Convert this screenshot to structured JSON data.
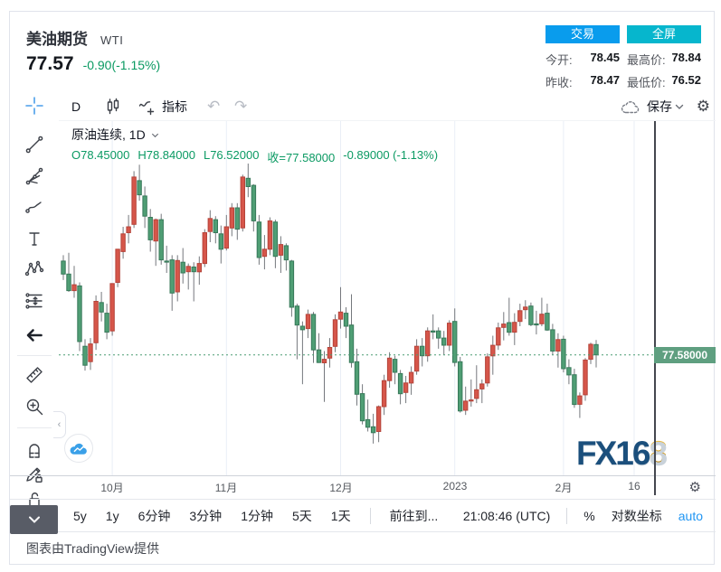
{
  "header": {
    "title": "美油期货",
    "symbol": "WTI",
    "price": "77.57",
    "change": "-0.90(-1.15%)",
    "trade_button": "交易",
    "fullscreen_button": "全屏",
    "stats": [
      {
        "label": "今开:",
        "value": "78.45"
      },
      {
        "label": "最高价:",
        "value": "78.84"
      },
      {
        "label": "昨收:",
        "value": "78.47"
      },
      {
        "label": "最低价:",
        "value": "76.52"
      }
    ]
  },
  "toolbar": {
    "interval": "D",
    "indicators_label": "指标",
    "undo_glyph": "↶",
    "redo_glyph": "↷",
    "save_label": "保存",
    "gear_glyph": "⚙"
  },
  "legend": {
    "series_title": "原油连续, 1D",
    "open": "O78.45000",
    "high": "H78.84000",
    "low": "L76.52000",
    "close": "收=77.58000",
    "change": "-0.89000 (-1.13%)"
  },
  "price_axis": {
    "last_price_label": "77.58000"
  },
  "bottom_bar": {
    "ranges": [
      "5y",
      "1y",
      "6分钟",
      "3分钟",
      "1分钟",
      "5天",
      "1天"
    ],
    "goto": "前往到...",
    "clock": "21:08:46 (UTC)",
    "percent": "%",
    "log_label": "对数坐标",
    "auto_label": "auto"
  },
  "footer": {
    "attribution": "图表由TradingView提供"
  },
  "watermark": {
    "blue": "FX16",
    "gold": "8"
  },
  "left_toolbar_collapse_glyph": "‹",
  "colors": {
    "up": "#d6564a",
    "up_border": "#b5443a",
    "down": "#4f9e74",
    "down_border": "#38795a",
    "wick": "#75787d",
    "grid": "#e9eef6",
    "price_line": "#4a9b72",
    "price_tag_bg": "#5f9f80",
    "trade_btn": "#099ced",
    "fullscreen_btn": "#06b6cd",
    "text_green": "#0a9a62",
    "auto_blue": "#2196f3"
  },
  "chart_data": {
    "type": "candlestick",
    "symbol": "原油连续",
    "interval": "1D",
    "last_price": 77.58,
    "price_range": {
      "min": 67.4,
      "max": 97.33
    },
    "grid": "vertical-only",
    "legend_position": "top-left",
    "time_ticks": [
      {
        "index": 9,
        "label": "10月"
      },
      {
        "index": 30,
        "label": "11月"
      },
      {
        "index": 51,
        "label": "12月"
      },
      {
        "index": 72,
        "label": "2023"
      },
      {
        "index": 92,
        "label": "2月"
      },
      {
        "index": 105,
        "label": "16"
      }
    ],
    "candles": [
      [
        "09-20",
        85.5,
        86.0,
        83.9,
        84.4
      ],
      [
        "09-21",
        84.4,
        86.2,
        82.9,
        83.0
      ],
      [
        "09-22",
        83.0,
        85.1,
        82.4,
        83.5
      ],
      [
        "09-23",
        83.4,
        83.7,
        77.9,
        78.7
      ],
      [
        "09-26",
        78.3,
        78.9,
        76.25,
        76.7
      ],
      [
        "09-27",
        77.0,
        79.0,
        76.3,
        78.5
      ],
      [
        "09-28",
        78.6,
        82.6,
        78.0,
        82.1
      ],
      [
        "09-29",
        82.0,
        82.9,
        80.4,
        81.2
      ],
      [
        "09-30",
        81.1,
        81.9,
        78.9,
        79.5
      ],
      [
        "10-03",
        79.6,
        83.6,
        79.2,
        83.6
      ],
      [
        "10-04",
        83.7,
        86.5,
        83.3,
        86.5
      ],
      [
        "10-05",
        86.3,
        88.4,
        85.7,
        87.8
      ],
      [
        "10-06",
        87.9,
        89.4,
        87.0,
        88.4
      ],
      [
        "10-07",
        88.6,
        93.1,
        88.3,
        92.6
      ],
      [
        "10-10",
        92.3,
        93.64,
        90.6,
        91.1
      ],
      [
        "10-11",
        91.0,
        91.8,
        88.3,
        89.3
      ],
      [
        "10-12",
        89.2,
        89.9,
        86.3,
        87.3
      ],
      [
        "10-13",
        87.2,
        89.1,
        85.1,
        89.0
      ],
      [
        "10-14",
        89.0,
        89.5,
        85.2,
        85.6
      ],
      [
        "10-17",
        85.5,
        86.8,
        84.5,
        85.45
      ],
      [
        "10-18",
        85.6,
        86.0,
        81.3,
        82.8
      ],
      [
        "10-19",
        82.9,
        86.0,
        82.1,
        85.55
      ],
      [
        "10-20",
        85.4,
        86.6,
        83.6,
        84.5
      ],
      [
        "10-21",
        84.6,
        85.3,
        83.1,
        85.05
      ],
      [
        "10-24",
        85.0,
        85.4,
        82.1,
        84.6
      ],
      [
        "10-25",
        84.6,
        85.9,
        83.5,
        85.3
      ],
      [
        "10-26",
        85.3,
        88.2,
        85.0,
        87.9
      ],
      [
        "10-27",
        88.0,
        89.8,
        87.1,
        89.1
      ],
      [
        "10-28",
        89.0,
        89.3,
        87.0,
        87.9
      ],
      [
        "10-31",
        87.8,
        88.5,
        85.3,
        86.5
      ],
      [
        "11-01",
        86.6,
        89.4,
        86.4,
        88.4
      ],
      [
        "11-02",
        88.3,
        90.4,
        87.6,
        90.0
      ],
      [
        "11-03",
        90.0,
        90.4,
        87.3,
        88.2
      ],
      [
        "11-04",
        88.3,
        92.8,
        88.0,
        92.6
      ],
      [
        "11-07",
        92.5,
        93.74,
        90.9,
        91.8
      ],
      [
        "11-08",
        91.9,
        92.0,
        88.0,
        88.9
      ],
      [
        "11-09",
        88.8,
        89.4,
        85.2,
        85.8
      ],
      [
        "11-10",
        85.9,
        87.7,
        84.8,
        86.5
      ],
      [
        "11-11",
        86.5,
        89.2,
        86.0,
        88.9
      ],
      [
        "11-14",
        88.8,
        89.0,
        84.9,
        85.9
      ],
      [
        "11-15",
        86.0,
        87.6,
        84.5,
        86.9
      ],
      [
        "11-16",
        86.8,
        87.0,
        84.7,
        85.6
      ],
      [
        "11-17",
        85.5,
        85.6,
        80.8,
        81.6
      ],
      [
        "11-18",
        81.7,
        81.9,
        77.2,
        80.1
      ],
      [
        "11-21",
        80.0,
        80.4,
        75.1,
        79.7
      ],
      [
        "11-22",
        79.8,
        81.4,
        79.0,
        81.0
      ],
      [
        "11-23",
        81.0,
        81.2,
        76.9,
        78.0
      ],
      [
        "11-25",
        78.0,
        79.4,
        76.9,
        76.93
      ],
      [
        "11-28",
        76.9,
        77.9,
        73.6,
        77.2
      ],
      [
        "11-29",
        77.3,
        79.0,
        76.5,
        78.2
      ],
      [
        "11-30",
        78.3,
        81.0,
        77.8,
        80.55
      ],
      [
        "12-01",
        80.6,
        83.3,
        79.8,
        81.2
      ],
      [
        "12-02",
        81.1,
        81.6,
        79.0,
        80.0
      ],
      [
        "12-05",
        80.1,
        82.7,
        76.5,
        76.93
      ],
      [
        "12-06",
        77.0,
        78.1,
        73.3,
        74.25
      ],
      [
        "12-07",
        74.3,
        75.1,
        71.7,
        72.0
      ],
      [
        "12-08",
        72.1,
        73.8,
        71.1,
        71.46
      ],
      [
        "12-09",
        71.5,
        72.6,
        70.08,
        71.0
      ],
      [
        "12-12",
        71.1,
        73.3,
        70.2,
        73.2
      ],
      [
        "12-13",
        73.2,
        75.9,
        72.5,
        75.4
      ],
      [
        "12-14",
        75.4,
        77.8,
        74.8,
        77.3
      ],
      [
        "12-15",
        77.2,
        77.5,
        75.1,
        76.1
      ],
      [
        "12-16",
        76.0,
        76.3,
        73.4,
        74.3
      ],
      [
        "12-19",
        74.4,
        75.8,
        73.5,
        75.2
      ],
      [
        "12-20",
        75.2,
        76.6,
        74.2,
        76.1
      ],
      [
        "12-21",
        76.2,
        78.9,
        75.9,
        78.3
      ],
      [
        "12-22",
        78.3,
        79.0,
        76.6,
        77.5
      ],
      [
        "12-23",
        77.5,
        79.9,
        77.0,
        79.6
      ],
      [
        "12-27",
        79.6,
        81.0,
        78.9,
        79.5
      ],
      [
        "12-28",
        79.6,
        79.9,
        78.1,
        79.0
      ],
      [
        "12-29",
        79.0,
        79.6,
        77.6,
        78.4
      ],
      [
        "12-30",
        78.4,
        80.5,
        77.9,
        80.26
      ],
      [
        "01-03",
        80.4,
        81.5,
        76.6,
        76.93
      ],
      [
        "01-04",
        77.0,
        77.4,
        72.7,
        72.84
      ],
      [
        "01-05",
        72.9,
        74.9,
        72.5,
        73.67
      ],
      [
        "01-06",
        73.7,
        75.5,
        73.2,
        73.77
      ],
      [
        "01-09",
        73.9,
        76.7,
        73.5,
        74.63
      ],
      [
        "01-10",
        74.7,
        75.5,
        73.5,
        75.12
      ],
      [
        "01-11",
        75.2,
        77.7,
        74.9,
        77.41
      ],
      [
        "01-12",
        77.5,
        79.2,
        75.9,
        78.39
      ],
      [
        "01-13",
        78.4,
        80.3,
        78.0,
        79.86
      ],
      [
        "01-17",
        79.9,
        81.2,
        78.8,
        80.18
      ],
      [
        "01-18",
        80.3,
        82.4,
        79.2,
        79.48
      ],
      [
        "01-19",
        79.5,
        81.1,
        78.4,
        80.33
      ],
      [
        "01-20",
        80.4,
        81.9,
        80.0,
        81.31
      ],
      [
        "01-23",
        81.4,
        82.2,
        80.6,
        81.62
      ],
      [
        "01-24",
        81.7,
        82.0,
        80.0,
        80.13
      ],
      [
        "01-25",
        80.2,
        81.3,
        79.3,
        80.15
      ],
      [
        "01-26",
        80.2,
        82.4,
        80.0,
        81.01
      ],
      [
        "01-27",
        81.1,
        81.9,
        79.6,
        79.68
      ],
      [
        "01-30",
        79.7,
        80.2,
        77.6,
        77.9
      ],
      [
        "01-31",
        77.9,
        79.4,
        76.5,
        78.87
      ],
      [
        "02-01",
        78.9,
        79.2,
        76.1,
        76.41
      ],
      [
        "02-02",
        76.5,
        77.2,
        75.1,
        75.88
      ],
      [
        "02-03",
        75.9,
        76.4,
        73.1,
        73.39
      ],
      [
        "02-06",
        73.4,
        74.4,
        72.25,
        74.11
      ],
      [
        "02-07",
        74.2,
        77.3,
        73.7,
        77.14
      ],
      [
        "02-08",
        77.2,
        78.6,
        76.8,
        78.47
      ],
      [
        "02-09",
        78.45,
        78.84,
        76.52,
        77.58
      ]
    ]
  }
}
